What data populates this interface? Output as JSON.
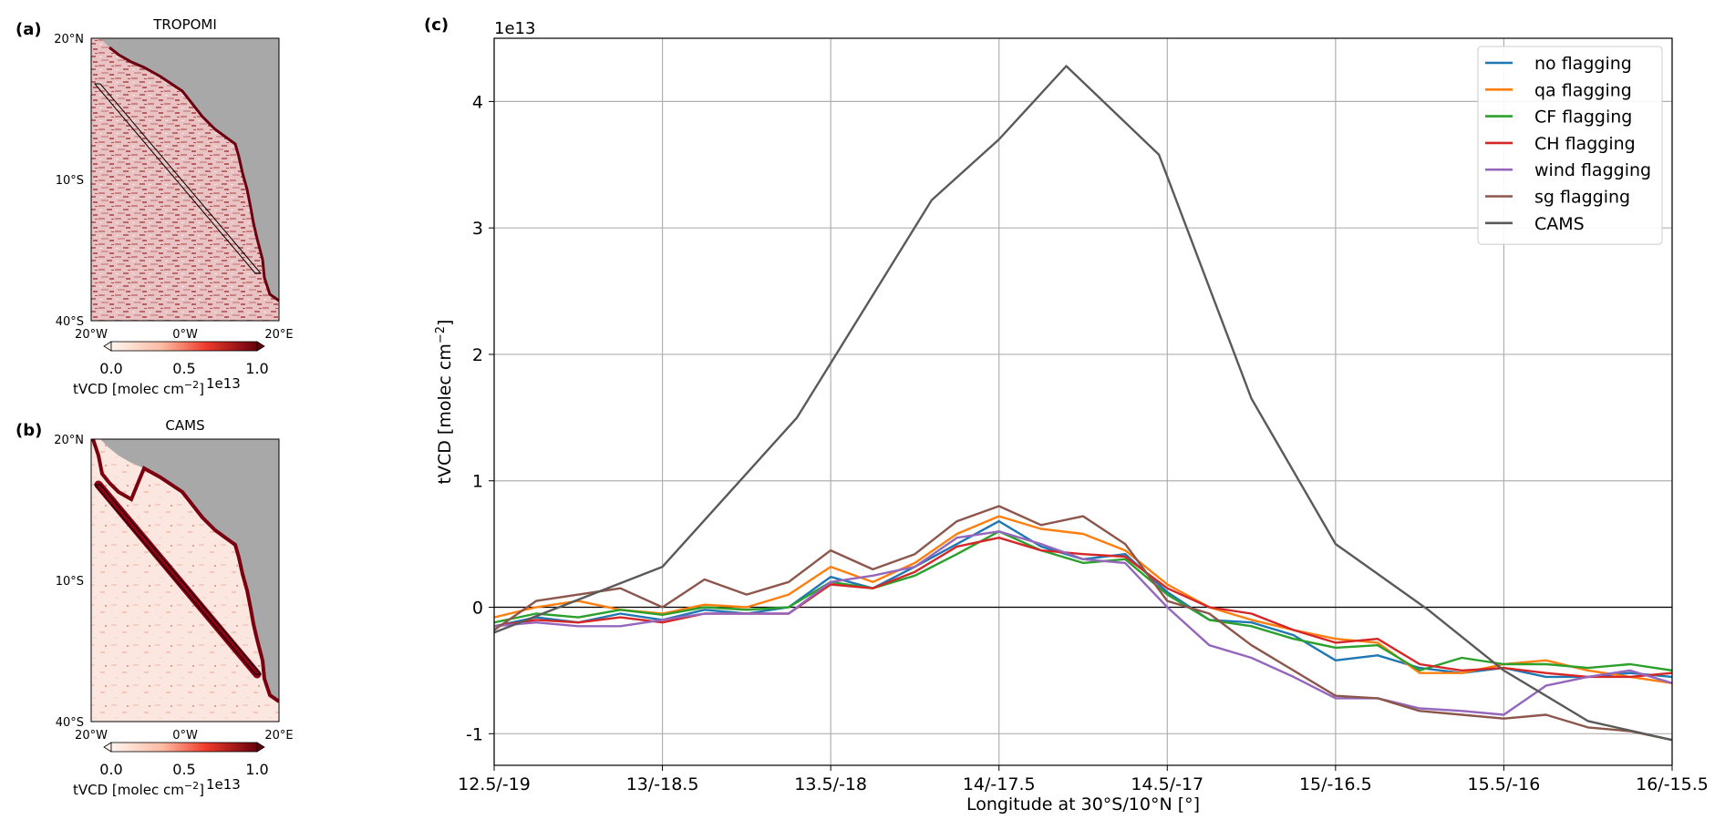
{
  "panels": {
    "a": {
      "label": "(a)",
      "title": "TROPOMI",
      "lat_ticks": [
        "20°N",
        "10°S",
        "40°S"
      ],
      "lon_ticks": [
        "20°W",
        "0°W",
        "20°E"
      ],
      "colorbar": {
        "ticks": [
          "0.0",
          "0.5",
          "1.0"
        ],
        "label": "tVCD [molec cm",
        "label_sup": "−2",
        "label_end": "]",
        "offset": "1e13",
        "min": 0,
        "max": 1.0
      },
      "land_color": "#a8a8a8"
    },
    "b": {
      "label": "(b)",
      "title": "CAMS",
      "lat_ticks": [
        "20°N",
        "10°S",
        "40°S"
      ],
      "lon_ticks": [
        "20°W",
        "0°W",
        "20°E"
      ],
      "colorbar": {
        "ticks": [
          "0.0",
          "0.5",
          "1.0"
        ],
        "label": "tVCD [molec cm",
        "label_sup": "−2",
        "label_end": "]",
        "offset": "1e13",
        "min": 0,
        "max": 1.0
      },
      "land_color": "#a8a8a8"
    },
    "c": {
      "label": "(c)"
    }
  },
  "chart_data": {
    "type": "line",
    "xlabel": "Longitude at 30°S/10°N [°]",
    "ylabel": "tVCD [molec cm",
    "ylabel_sup": "−2",
    "ylabel_end": "]",
    "y_offset": "1e13",
    "xlim": [
      0,
      7
    ],
    "ylim": [
      -1.25,
      4.5
    ],
    "x_ticks": [
      "12.5/-19",
      "13/-18.5",
      "13.5/-18",
      "14/-17.5",
      "14.5/-17",
      "15/-16.5",
      "15.5/-16",
      "16/-15.5"
    ],
    "y_ticks": [
      -1,
      0,
      1,
      2,
      3,
      4
    ],
    "grid": true,
    "zero_line": true,
    "legend_position": "top-right",
    "series": [
      {
        "name": "no flagging",
        "color": "#1f77b4",
        "x": [
          0,
          0.25,
          0.5,
          0.75,
          1.0,
          1.25,
          1.5,
          1.75,
          2.0,
          2.25,
          2.5,
          2.75,
          3.0,
          3.25,
          3.5,
          3.75,
          4.0,
          4.25,
          4.5,
          4.75,
          5.0,
          5.25,
          5.5,
          5.75,
          6.0,
          6.25,
          6.5,
          6.75,
          7.0
        ],
        "y": [
          -0.15,
          -0.08,
          -0.12,
          -0.05,
          -0.1,
          -0.02,
          -0.05,
          0.0,
          0.24,
          0.15,
          0.32,
          0.5,
          0.68,
          0.48,
          0.38,
          0.42,
          0.12,
          -0.1,
          -0.12,
          -0.22,
          -0.42,
          -0.38,
          -0.48,
          -0.52,
          -0.48,
          -0.55,
          -0.55,
          -0.52,
          -0.55
        ]
      },
      {
        "name": "qa flagging",
        "color": "#ff7f0e",
        "x": [
          0,
          0.25,
          0.5,
          0.75,
          1.0,
          1.25,
          1.5,
          1.75,
          2.0,
          2.25,
          2.5,
          2.75,
          3.0,
          3.25,
          3.5,
          3.75,
          4.0,
          4.25,
          4.5,
          4.75,
          5.0,
          5.25,
          5.5,
          5.75,
          6.0,
          6.25,
          6.5,
          6.75,
          7.0
        ],
        "y": [
          -0.08,
          0.0,
          0.05,
          -0.02,
          -0.05,
          0.02,
          0.0,
          0.1,
          0.32,
          0.2,
          0.35,
          0.58,
          0.72,
          0.62,
          0.58,
          0.45,
          0.18,
          0.0,
          -0.1,
          -0.18,
          -0.25,
          -0.28,
          -0.52,
          -0.52,
          -0.45,
          -0.42,
          -0.5,
          -0.55,
          -0.6
        ]
      },
      {
        "name": "CF flagging",
        "color": "#2ca02c",
        "x": [
          0,
          0.25,
          0.5,
          0.75,
          1.0,
          1.25,
          1.5,
          1.75,
          2.0,
          2.25,
          2.5,
          2.75,
          3.0,
          3.25,
          3.5,
          3.75,
          4.0,
          4.25,
          4.5,
          4.75,
          5.0,
          5.25,
          5.5,
          5.75,
          6.0,
          6.25,
          6.5,
          6.75,
          7.0
        ],
        "y": [
          -0.12,
          -0.05,
          -0.08,
          -0.02,
          -0.06,
          0.0,
          -0.02,
          0.0,
          0.2,
          0.15,
          0.25,
          0.42,
          0.6,
          0.45,
          0.35,
          0.38,
          0.1,
          -0.1,
          -0.15,
          -0.25,
          -0.32,
          -0.3,
          -0.5,
          -0.4,
          -0.45,
          -0.45,
          -0.48,
          -0.45,
          -0.5
        ]
      },
      {
        "name": "CH flagging",
        "color": "#d62728",
        "x": [
          0,
          0.25,
          0.5,
          0.75,
          1.0,
          1.25,
          1.5,
          1.75,
          2.0,
          2.25,
          2.5,
          2.75,
          3.0,
          3.25,
          3.5,
          3.75,
          4.0,
          4.25,
          4.5,
          4.75,
          5.0,
          5.25,
          5.5,
          5.75,
          6.0,
          6.25,
          6.5,
          6.75,
          7.0
        ],
        "y": [
          -0.15,
          -0.1,
          -0.12,
          -0.08,
          -0.12,
          -0.05,
          -0.05,
          -0.05,
          0.18,
          0.15,
          0.28,
          0.48,
          0.55,
          0.45,
          0.42,
          0.4,
          0.15,
          0.0,
          -0.05,
          -0.18,
          -0.28,
          -0.25,
          -0.45,
          -0.5,
          -0.48,
          -0.52,
          -0.55,
          -0.55,
          -0.52
        ]
      },
      {
        "name": "wind flagging",
        "color": "#9467bd",
        "x": [
          0,
          0.25,
          0.5,
          0.75,
          1.0,
          1.25,
          1.5,
          1.75,
          2.0,
          2.25,
          2.5,
          2.75,
          3.0,
          3.25,
          3.5,
          3.75,
          4.0,
          4.25,
          4.5,
          4.75,
          5.0,
          5.25,
          5.5,
          5.75,
          6.0,
          6.25,
          6.5,
          6.75,
          7.0
        ],
        "y": [
          -0.15,
          -0.12,
          -0.15,
          -0.15,
          -0.1,
          -0.05,
          -0.05,
          -0.05,
          0.2,
          0.25,
          0.32,
          0.55,
          0.6,
          0.5,
          0.38,
          0.35,
          0.0,
          -0.3,
          -0.4,
          -0.55,
          -0.72,
          -0.72,
          -0.8,
          -0.82,
          -0.85,
          -0.62,
          -0.55,
          -0.5,
          -0.6
        ]
      },
      {
        "name": "sg flagging",
        "color": "#8c564b",
        "x": [
          0,
          0.25,
          0.5,
          0.75,
          1.0,
          1.25,
          1.5,
          1.75,
          2.0,
          2.25,
          2.5,
          2.75,
          3.0,
          3.25,
          3.5,
          3.75,
          4.0,
          4.25,
          4.5,
          4.75,
          5.0,
          5.25,
          5.5,
          5.75,
          6.0,
          6.25,
          6.5,
          6.75,
          7.0
        ],
        "y": [
          -0.18,
          0.05,
          0.1,
          0.15,
          0.0,
          0.22,
          0.1,
          0.2,
          0.45,
          0.3,
          0.42,
          0.68,
          0.8,
          0.65,
          0.72,
          0.5,
          0.05,
          -0.05,
          -0.3,
          -0.5,
          -0.7,
          -0.72,
          -0.82,
          -0.85,
          -0.88,
          -0.85,
          -0.95,
          -0.98,
          -1.05
        ]
      },
      {
        "name": "CAMS",
        "color": "#5a5a5a",
        "x": [
          0,
          1.0,
          1.8,
          2.6,
          3.0,
          3.4,
          3.95,
          4.5,
          5.0,
          5.55,
          6.0,
          6.5,
          7.0
        ],
        "y": [
          -0.2,
          0.32,
          1.5,
          3.22,
          3.7,
          4.28,
          3.58,
          1.65,
          0.5,
          -0.02,
          -0.5,
          -0.9,
          -1.05
        ]
      }
    ]
  }
}
